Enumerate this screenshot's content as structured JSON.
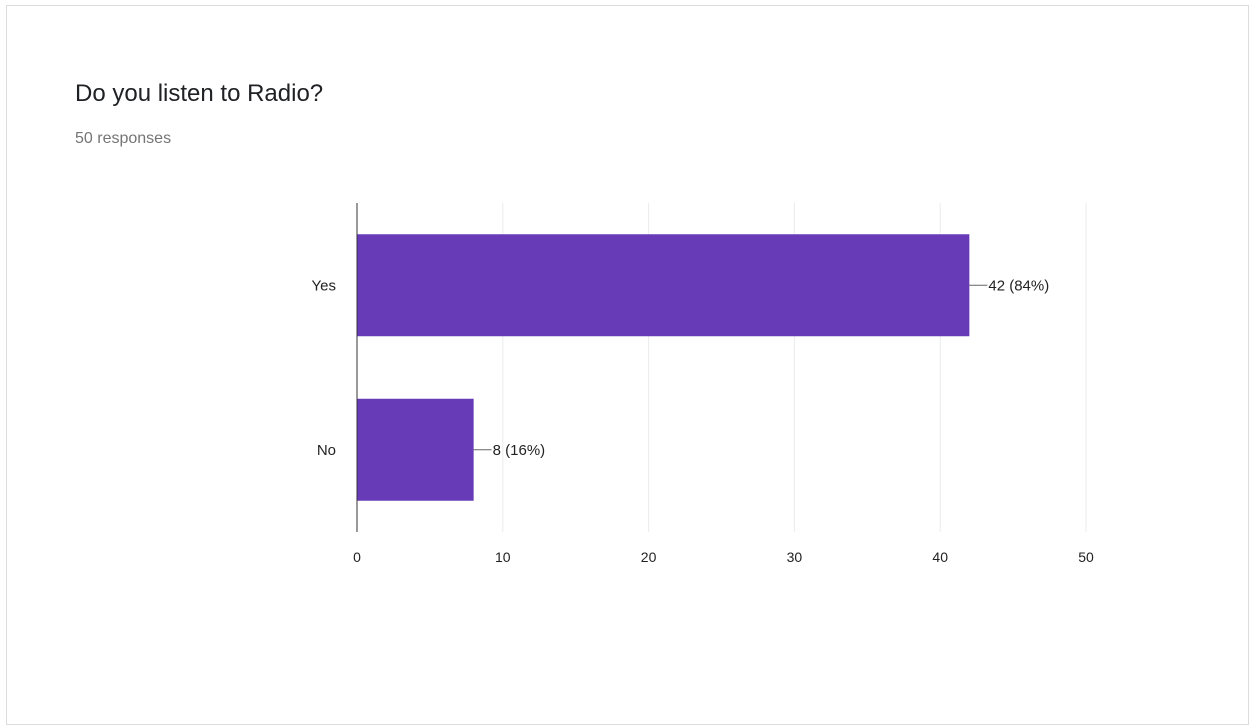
{
  "question": {
    "title": "Do you listen to Radio?",
    "responses": "50 responses"
  },
  "colors": {
    "bar": "#673ab7",
    "grid": "#ebebeb",
    "axis": "#333333",
    "text": "#222222"
  },
  "chart_data": {
    "type": "bar",
    "orientation": "horizontal",
    "categories": [
      "Yes",
      "No"
    ],
    "values": [
      42,
      8
    ],
    "data_labels": [
      "42 (84%)",
      "8 (16%)"
    ],
    "xlim": [
      0,
      50
    ],
    "xticks": [
      0,
      10,
      20,
      30,
      40,
      50
    ],
    "grid": true,
    "legend": "none"
  }
}
